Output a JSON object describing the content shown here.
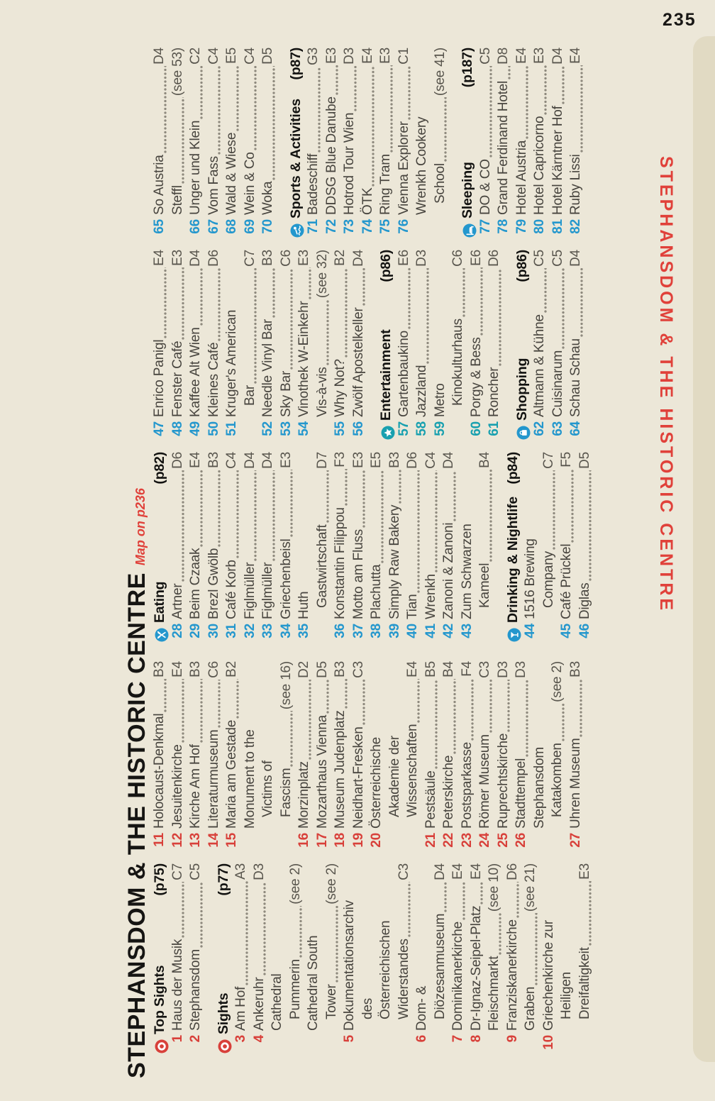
{
  "page": {
    "number": "235"
  },
  "side_tab": {
    "label": "STEPHANSDOM & THE HISTORIC CENTRE"
  },
  "title": {
    "main": "STEPHANSDOM & THE HISTORIC CENTRE",
    "map_ref": "Map on p236"
  },
  "colors": {
    "page_bg": "#ece7d8",
    "tab_strip": "#e1dac3",
    "red": "#d8403a",
    "blue": "#2497cd",
    "teal": "#18a0af",
    "text": "#47443e",
    "ref_gray": "#58554d",
    "header_black": "#131311"
  },
  "icon_colors": {
    "sights": "red",
    "eating": "blue",
    "drinking": "blue",
    "entertainment": "teal",
    "shopping": "blue",
    "sports": "blue",
    "sleeping": "blue"
  },
  "columns": [
    {
      "lines": [
        {
          "type": "header",
          "icon": "sights",
          "label": "Top Sights",
          "page": "(p75)"
        },
        {
          "type": "entry",
          "num": "1",
          "nc": "red",
          "name": "Haus der Musik",
          "ref": "C7",
          "indent": 0
        },
        {
          "type": "entry",
          "num": "2",
          "nc": "red",
          "name": "Stephansdom",
          "ref": "C5",
          "indent": 0
        },
        {
          "type": "header",
          "icon": "sights",
          "label": "Sights",
          "page": "(p77)",
          "gap": true
        },
        {
          "type": "entry",
          "num": "3",
          "nc": "red",
          "name": "Am Hof",
          "ref": "A3",
          "indent": 0
        },
        {
          "type": "entry",
          "num": "4",
          "nc": "red",
          "name": "Ankeruhr",
          "ref": "D3",
          "indent": 0
        },
        {
          "type": "entry",
          "name": "Cathedral",
          "indent": 1
        },
        {
          "type": "entry",
          "name": "Pummerin",
          "ref": "(see 2)",
          "indent": 2
        },
        {
          "type": "entry",
          "name": "Cathedral South",
          "indent": 1
        },
        {
          "type": "entry",
          "name": "Tower",
          "ref": "(see 2)",
          "indent": 2
        },
        {
          "type": "entry",
          "num": "5",
          "nc": "red",
          "name": "Dokumentationsarchiv",
          "indent": 0
        },
        {
          "type": "entry",
          "name": "des",
          "indent": 2
        },
        {
          "type": "entry",
          "name": "Österreichischen",
          "indent": 2
        },
        {
          "type": "entry",
          "name": "Widerstandes",
          "ref": "C3",
          "indent": 2
        },
        {
          "type": "entry",
          "num": "6",
          "nc": "red",
          "name": "Dom- &",
          "indent": 0
        },
        {
          "type": "entry",
          "name": "Diözesanmuseum",
          "ref": "D4",
          "indent": 2
        },
        {
          "type": "entry",
          "num": "7",
          "nc": "red",
          "name": "Dominikanerkirche",
          "ref": "E4",
          "indent": 0
        },
        {
          "type": "entry",
          "num": "8",
          "nc": "red",
          "name": "Dr-Ignaz-Seipel-Platz",
          "ref": "E4",
          "indent": 0
        },
        {
          "type": "entry",
          "name": "Fleischmarkt",
          "ref": "(see 10)",
          "indent": 1
        },
        {
          "type": "entry",
          "num": "9",
          "nc": "red",
          "name": "Franziskanerkirche",
          "ref": "D6",
          "indent": 0
        },
        {
          "type": "entry",
          "name": "Graben",
          "ref": "(see 21)",
          "indent": 1
        },
        {
          "type": "entry",
          "num": "10",
          "nc": "red",
          "name": "Griechenkirche zur",
          "indent": 0
        },
        {
          "type": "entry",
          "name": "Heiligen",
          "indent": 2
        },
        {
          "type": "entry",
          "name": "Dreifaltigkeit",
          "ref": "E3",
          "indent": 2
        }
      ]
    },
    {
      "lines": [
        {
          "type": "entry",
          "num": "11",
          "nc": "red",
          "name": "Holocaust-Denkmal",
          "ref": "B3",
          "indent": 0
        },
        {
          "type": "entry",
          "num": "12",
          "nc": "red",
          "name": "Jesuitenkirche",
          "ref": "E4",
          "indent": 0
        },
        {
          "type": "entry",
          "num": "13",
          "nc": "red",
          "name": "Kirche Am Hof",
          "ref": "B3",
          "indent": 0
        },
        {
          "type": "entry",
          "num": "14",
          "nc": "red",
          "name": "Literaturmuseum",
          "ref": "C6",
          "indent": 0
        },
        {
          "type": "entry",
          "num": "15",
          "nc": "red",
          "name": "Maria am Gestade",
          "ref": "B2",
          "indent": 0
        },
        {
          "type": "entry",
          "name": "Monument to the",
          "indent": 1
        },
        {
          "type": "entry",
          "name": "Victims of",
          "indent": 2
        },
        {
          "type": "entry",
          "name": "Fascism",
          "ref": "(see 16)",
          "indent": 2
        },
        {
          "type": "entry",
          "num": "16",
          "nc": "red",
          "name": "Morzinplatz",
          "ref": "D2",
          "indent": 0
        },
        {
          "type": "entry",
          "num": "17",
          "nc": "red",
          "name": "Mozarthaus Vienna",
          "ref": "D5",
          "indent": 0
        },
        {
          "type": "entry",
          "num": "18",
          "nc": "red",
          "name": "Museum Judenplatz",
          "ref": "B3",
          "indent": 0
        },
        {
          "type": "entry",
          "num": "19",
          "nc": "red",
          "name": "Neidhart-Fresken",
          "ref": "C3",
          "indent": 0
        },
        {
          "type": "entry",
          "num": "20",
          "nc": "red",
          "name": "Österreichische",
          "indent": 0
        },
        {
          "type": "entry",
          "name": "Akademie der",
          "indent": 2
        },
        {
          "type": "entry",
          "name": "Wissenschaften",
          "ref": "E4",
          "indent": 2
        },
        {
          "type": "entry",
          "num": "21",
          "nc": "red",
          "name": "Pestsäule",
          "ref": "B5",
          "indent": 0
        },
        {
          "type": "entry",
          "num": "22",
          "nc": "red",
          "name": "Peterskirche",
          "ref": "B4",
          "indent": 0
        },
        {
          "type": "entry",
          "num": "23",
          "nc": "red",
          "name": "Postsparkasse",
          "ref": "F4",
          "indent": 0
        },
        {
          "type": "entry",
          "num": "24",
          "nc": "red",
          "name": "Römer Museum",
          "ref": "C3",
          "indent": 0
        },
        {
          "type": "entry",
          "num": "25",
          "nc": "red",
          "name": "Ruprechtskirche",
          "ref": "D3",
          "indent": 0
        },
        {
          "type": "entry",
          "num": "26",
          "nc": "red",
          "name": "Stadttempel",
          "ref": "D3",
          "indent": 0
        },
        {
          "type": "entry",
          "name": "Stephansdom",
          "indent": 1
        },
        {
          "type": "entry",
          "name": "Katakomben",
          "ref": "(see 2)",
          "indent": 2
        },
        {
          "type": "entry",
          "num": "27",
          "nc": "red",
          "name": "Uhren Museum",
          "ref": "B3",
          "indent": 0
        }
      ]
    },
    {
      "lines": [
        {
          "type": "header",
          "icon": "eating",
          "label": "Eating",
          "page": "(p82)"
        },
        {
          "type": "entry",
          "num": "28",
          "nc": "blue",
          "name": "Artner",
          "ref": "D6",
          "indent": 0
        },
        {
          "type": "entry",
          "num": "29",
          "nc": "blue",
          "name": "Beim Czaak",
          "ref": "E4",
          "indent": 0
        },
        {
          "type": "entry",
          "num": "30",
          "nc": "blue",
          "name": "Brezl Gwölb",
          "ref": "B3",
          "indent": 0
        },
        {
          "type": "entry",
          "num": "31",
          "nc": "blue",
          "name": "Café Korb",
          "ref": "C4",
          "indent": 0
        },
        {
          "type": "entry",
          "num": "32",
          "nc": "blue",
          "name": "Figlmüller",
          "ref": "D4",
          "indent": 0
        },
        {
          "type": "entry",
          "num": "33",
          "nc": "blue",
          "name": "Figlmüller",
          "ref": "D4",
          "indent": 0
        },
        {
          "type": "entry",
          "num": "34",
          "nc": "blue",
          "name": "Griechenbeisl",
          "ref": "E3",
          "indent": 0
        },
        {
          "type": "entry",
          "num": "35",
          "nc": "blue",
          "name": "Huth",
          "indent": 0
        },
        {
          "type": "entry",
          "name": "Gastwirtschaft",
          "ref": "D7",
          "indent": 2
        },
        {
          "type": "entry",
          "num": "36",
          "nc": "blue",
          "name": "Konstantin Filippou",
          "ref": "F3",
          "indent": 0
        },
        {
          "type": "entry",
          "num": "37",
          "nc": "blue",
          "name": "Motto am Fluss",
          "ref": "E3",
          "indent": 0
        },
        {
          "type": "entry",
          "num": "38",
          "nc": "blue",
          "name": "Plachutta",
          "ref": "E5",
          "indent": 0
        },
        {
          "type": "entry",
          "num": "39",
          "nc": "blue",
          "name": "Simply Raw Bakery",
          "ref": "B3",
          "indent": 0
        },
        {
          "type": "entry",
          "num": "40",
          "nc": "blue",
          "name": "Tian",
          "ref": "D6",
          "indent": 0
        },
        {
          "type": "entry",
          "num": "41",
          "nc": "blue",
          "name": "Wrenkh",
          "ref": "C4",
          "indent": 0
        },
        {
          "type": "entry",
          "num": "42",
          "nc": "blue",
          "name": "Zanoni & Zanoni",
          "ref": "D4",
          "indent": 0
        },
        {
          "type": "entry",
          "num": "43",
          "nc": "blue",
          "name": "Zum Schwarzen",
          "indent": 0
        },
        {
          "type": "entry",
          "name": "Kameel",
          "ref": "B4",
          "indent": 2
        },
        {
          "type": "header",
          "icon": "drinking",
          "label": "Drinking & Nightlife",
          "page": "(p84)",
          "gap": true
        },
        {
          "type": "entry",
          "num": "44",
          "nc": "blue",
          "name": "1516 Brewing",
          "indent": 0
        },
        {
          "type": "entry",
          "name": "Company",
          "ref": "C7",
          "indent": 2
        },
        {
          "type": "entry",
          "num": "45",
          "nc": "blue",
          "name": "Café Prückel",
          "ref": "F5",
          "indent": 0
        },
        {
          "type": "entry",
          "num": "46",
          "nc": "blue",
          "name": "Diglas",
          "ref": "D5",
          "indent": 0
        }
      ]
    },
    {
      "lines": [
        {
          "type": "entry",
          "num": "47",
          "nc": "blue",
          "name": "Enrico Panigl",
          "ref": "E4",
          "indent": 0
        },
        {
          "type": "entry",
          "num": "48",
          "nc": "blue",
          "name": "Fenster Café",
          "ref": "E3",
          "indent": 0
        },
        {
          "type": "entry",
          "num": "49",
          "nc": "blue",
          "name": "Kaffee Alt Wien",
          "ref": "D4",
          "indent": 0
        },
        {
          "type": "entry",
          "num": "50",
          "nc": "blue",
          "name": "Kleines Café",
          "ref": "D6",
          "indent": 0
        },
        {
          "type": "entry",
          "num": "51",
          "nc": "blue",
          "name": "Kruger's American",
          "indent": 0
        },
        {
          "type": "entry",
          "name": "Bar",
          "ref": "C7",
          "indent": 2
        },
        {
          "type": "entry",
          "num": "52",
          "nc": "blue",
          "name": "Needle Vinyl Bar",
          "ref": "B3",
          "indent": 0
        },
        {
          "type": "entry",
          "num": "53",
          "nc": "blue",
          "name": "Sky Bar",
          "ref": "C6",
          "indent": 0
        },
        {
          "type": "entry",
          "num": "54",
          "nc": "blue",
          "name": "Vinothek W-Einkehr",
          "ref": "E3",
          "indent": 0
        },
        {
          "type": "entry",
          "name": "Vis-à-vis",
          "ref": "(see 32)",
          "indent": 1
        },
        {
          "type": "entry",
          "num": "55",
          "nc": "blue",
          "name": "Why Not?",
          "ref": "B2",
          "indent": 0
        },
        {
          "type": "entry",
          "num": "56",
          "nc": "blue",
          "name": "Zwölf Apostelkeller",
          "ref": "D4",
          "indent": 0
        },
        {
          "type": "header",
          "icon": "entertainment",
          "label": "Entertainment",
          "page": "(p86)",
          "gap": true
        },
        {
          "type": "entry",
          "num": "57",
          "nc": "teal",
          "name": "Gartenbaukino",
          "ref": "E6",
          "indent": 0
        },
        {
          "type": "entry",
          "num": "58",
          "nc": "teal",
          "name": "Jazzland",
          "ref": "D3",
          "indent": 0
        },
        {
          "type": "entry",
          "num": "59",
          "nc": "teal",
          "name": "Metro",
          "indent": 0
        },
        {
          "type": "entry",
          "name": "Kinokulturhaus",
          "ref": "C6",
          "indent": 2
        },
        {
          "type": "entry",
          "num": "60",
          "nc": "teal",
          "name": "Porgy & Bess",
          "ref": "E6",
          "indent": 0
        },
        {
          "type": "entry",
          "num": "61",
          "nc": "teal",
          "name": "Roncher",
          "ref": "D6",
          "indent": 0
        },
        {
          "type": "header",
          "icon": "shopping",
          "label": "Shopping",
          "page": "(p86)",
          "gap": true
        },
        {
          "type": "entry",
          "num": "62",
          "nc": "blue",
          "name": "Altmann & Kühne",
          "ref": "C5",
          "indent": 0
        },
        {
          "type": "entry",
          "num": "63",
          "nc": "blue",
          "name": "Cuisinarum",
          "ref": "C5",
          "indent": 0
        },
        {
          "type": "entry",
          "num": "64",
          "nc": "blue",
          "name": "Schau Schau",
          "ref": "D4",
          "indent": 0
        }
      ]
    },
    {
      "lines": [
        {
          "type": "entry",
          "num": "65",
          "nc": "blue",
          "name": "So Austria",
          "ref": "D4",
          "indent": 0
        },
        {
          "type": "entry",
          "name": "Steffl",
          "ref": "(see 53)",
          "indent": 1
        },
        {
          "type": "entry",
          "num": "66",
          "nc": "blue",
          "name": "Unger und Klein",
          "ref": "C2",
          "indent": 0
        },
        {
          "type": "entry",
          "num": "67",
          "nc": "blue",
          "name": "Vom Fass",
          "ref": "C4",
          "indent": 0
        },
        {
          "type": "entry",
          "num": "68",
          "nc": "blue",
          "name": "Wald & Wiese",
          "ref": "E5",
          "indent": 0
        },
        {
          "type": "entry",
          "num": "69",
          "nc": "blue",
          "name": "Wein & Co",
          "ref": "C4",
          "indent": 0
        },
        {
          "type": "entry",
          "num": "70",
          "nc": "blue",
          "name": "Woka",
          "ref": "D5",
          "indent": 0
        },
        {
          "type": "header",
          "icon": "sports",
          "label": "Sports & Activities",
          "page": "(p87)",
          "gap": true
        },
        {
          "type": "entry",
          "num": "71",
          "nc": "blue",
          "name": "Badeschiff",
          "ref": "G3",
          "indent": 0
        },
        {
          "type": "entry",
          "num": "72",
          "nc": "blue",
          "name": "DDSG Blue Danube",
          "ref": "E3",
          "indent": 0
        },
        {
          "type": "entry",
          "num": "73",
          "nc": "blue",
          "name": "Hotrod Tour Wien",
          "ref": "D3",
          "indent": 0
        },
        {
          "type": "entry",
          "num": "74",
          "nc": "blue",
          "name": "ÖTK",
          "ref": "E4",
          "indent": 0
        },
        {
          "type": "entry",
          "num": "75",
          "nc": "blue",
          "name": "Ring Tram",
          "ref": "E3",
          "indent": 0
        },
        {
          "type": "entry",
          "num": "76",
          "nc": "blue",
          "name": "Vienna Explorer",
          "ref": "C1",
          "indent": 0
        },
        {
          "type": "entry",
          "name": "Wrenkh Cookery",
          "indent": 1
        },
        {
          "type": "entry",
          "name": "School",
          "ref": "(see 41)",
          "indent": 2
        },
        {
          "type": "header",
          "icon": "sleeping",
          "label": "Sleeping",
          "page": "(p187)",
          "gap": true
        },
        {
          "type": "entry",
          "num": "77",
          "nc": "blue",
          "name": "DO & CO",
          "ref": "C5",
          "indent": 0
        },
        {
          "type": "entry",
          "num": "78",
          "nc": "blue",
          "name": "Grand Ferdinand Hotel",
          "ref": "D8",
          "indent": 0
        },
        {
          "type": "entry",
          "num": "79",
          "nc": "blue",
          "name": "Hotel Austria",
          "ref": "E4",
          "indent": 0
        },
        {
          "type": "entry",
          "num": "80",
          "nc": "blue",
          "name": "Hotel Capricorno",
          "ref": "E3",
          "indent": 0
        },
        {
          "type": "entry",
          "num": "81",
          "nc": "blue",
          "name": "Hotel Kärntner Hof",
          "ref": "D4",
          "indent": 0
        },
        {
          "type": "entry",
          "num": "82",
          "nc": "blue",
          "name": "Ruby Lissi",
          "ref": "E4",
          "indent": 0
        }
      ]
    }
  ]
}
